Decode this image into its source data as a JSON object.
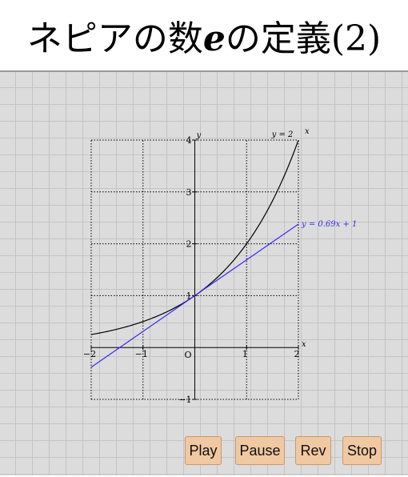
{
  "title": {
    "prefix": "ネピアの数",
    "e": "e",
    "suffix": "の定義(2)"
  },
  "colors": {
    "curve": "#000000",
    "tangent": "#3a2cf0",
    "button_bg": "#f0c8a2",
    "canvas_bg": "#dcdcdc"
  },
  "chart_data": {
    "type": "line",
    "xlim": [
      -2,
      2
    ],
    "ylim": [
      -1,
      4
    ],
    "grid": true,
    "xlabel": "x",
    "ylabel": "y",
    "origin_label": "O",
    "x_ticks": [
      "−2",
      "−1",
      "1",
      "2"
    ],
    "y_ticks": [
      "−1",
      "1",
      "2",
      "3",
      "4"
    ],
    "series": [
      {
        "name": "y = 2^x",
        "label_main": "y = 2",
        "label_sup": "x",
        "function": "2^x"
      },
      {
        "name": "y = 0.69x + 1",
        "label_main": "y = 0.69x + 1",
        "slope": 0.69,
        "intercept": 1
      }
    ]
  },
  "buttons": {
    "play": "Play",
    "pause": "Pause",
    "rev": "Rev",
    "stop": "Stop"
  }
}
